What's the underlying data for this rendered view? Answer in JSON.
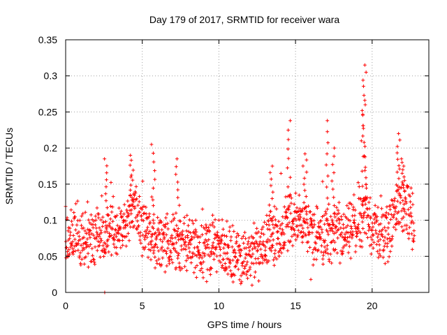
{
  "chart_data": {
    "type": "scatter",
    "title": "Day 179 of 2017, SRMTID for receiver wara",
    "xlabel": "GPS time / hours",
    "ylabel": "SRMTID / TECUs",
    "xlim": [
      0,
      23.7
    ],
    "ylim": [
      0,
      0.35
    ],
    "grid": true,
    "marker": "+",
    "marker_color": "#ff0000",
    "x_ticks": [
      0,
      5,
      10,
      15,
      20
    ],
    "x_tick_labels": [
      "0",
      "5",
      "10",
      "15",
      "20"
    ],
    "y_ticks": [
      0,
      0.05,
      0.1,
      0.15,
      0.2,
      0.25,
      0.3,
      0.35
    ],
    "y_tick_labels": [
      "0",
      "0.05",
      "0.1",
      "0.15",
      "0.2",
      "0.25",
      "0.3",
      "0.35"
    ],
    "series": [
      {
        "name": "SRMTID",
        "hours_start": 0.0,
        "hours_end": 22.75,
        "baseline": [
          [
            0.0,
            0.08
          ],
          [
            1.0,
            0.07
          ],
          [
            2.0,
            0.075
          ],
          [
            3.0,
            0.08
          ],
          [
            4.0,
            0.09
          ],
          [
            4.5,
            0.12
          ],
          [
            5.0,
            0.09
          ],
          [
            6.0,
            0.07
          ],
          [
            7.0,
            0.07
          ],
          [
            8.0,
            0.065
          ],
          [
            9.0,
            0.065
          ],
          [
            10.0,
            0.065
          ],
          [
            11.0,
            0.05
          ],
          [
            12.0,
            0.045
          ],
          [
            13.0,
            0.07
          ],
          [
            14.0,
            0.08
          ],
          [
            14.6,
            0.1
          ],
          [
            15.5,
            0.1
          ],
          [
            16.0,
            0.08
          ],
          [
            17.0,
            0.08
          ],
          [
            18.0,
            0.075
          ],
          [
            19.0,
            0.09
          ],
          [
            19.5,
            0.11
          ],
          [
            20.0,
            0.09
          ],
          [
            21.0,
            0.075
          ],
          [
            21.7,
            0.12
          ],
          [
            22.0,
            0.12
          ],
          [
            22.75,
            0.095
          ]
        ],
        "peaks": [
          {
            "x": 2.6,
            "y": 0.185
          },
          {
            "x": 4.3,
            "y": 0.19
          },
          {
            "x": 5.7,
            "y": 0.205
          },
          {
            "x": 7.3,
            "y": 0.185
          },
          {
            "x": 13.4,
            "y": 0.175
          },
          {
            "x": 14.6,
            "y": 0.238
          },
          {
            "x": 15.6,
            "y": 0.192
          },
          {
            "x": 17.0,
            "y": 0.238
          },
          {
            "x": 17.5,
            "y": 0.2
          },
          {
            "x": 19.4,
            "y": 0.315
          },
          {
            "x": 19.5,
            "y": 0.305
          },
          {
            "x": 19.5,
            "y": 0.26
          },
          {
            "x": 21.7,
            "y": 0.22
          },
          {
            "x": 22.0,
            "y": 0.185
          }
        ],
        "outliers": [
          {
            "x": 2.55,
            "y": 0.0
          },
          {
            "x": 9.2,
            "y": 0.015
          },
          {
            "x": 16.0,
            "y": 0.018
          }
        ]
      }
    ]
  }
}
